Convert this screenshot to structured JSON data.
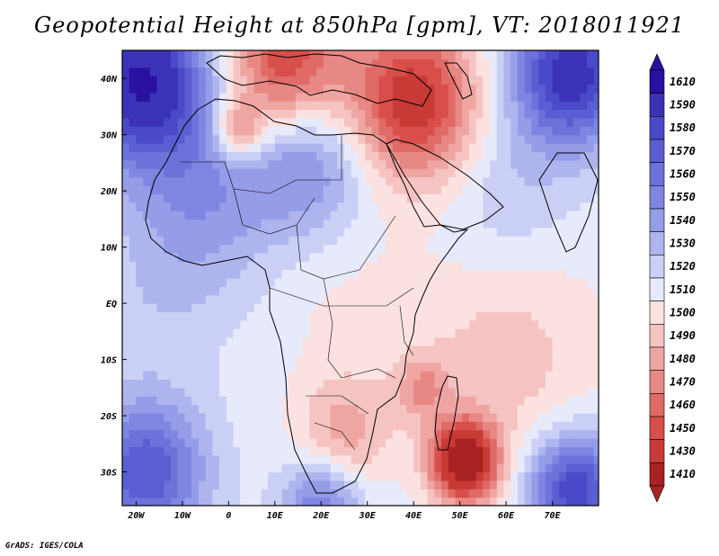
{
  "title": "Geopotential Height at 850hPa [gpm], VT: 2018011921",
  "credit": "GrADS: IGES/COLA",
  "map": {
    "lon_range": [
      -23,
      80
    ],
    "lat_range": [
      -36,
      45
    ],
    "lon_ticks": [
      {
        "value": -20,
        "label": "20W"
      },
      {
        "value": -10,
        "label": "10W"
      },
      {
        "value": 0,
        "label": "0"
      },
      {
        "value": 10,
        "label": "10E"
      },
      {
        "value": 20,
        "label": "20E"
      },
      {
        "value": 30,
        "label": "30E"
      },
      {
        "value": 40,
        "label": "40E"
      },
      {
        "value": 50,
        "label": "50E"
      },
      {
        "value": 60,
        "label": "60E"
      },
      {
        "value": 70,
        "label": "70E"
      }
    ],
    "lat_ticks": [
      {
        "value": 40,
        "label": "40N"
      },
      {
        "value": 30,
        "label": "30N"
      },
      {
        "value": 20,
        "label": "20N"
      },
      {
        "value": 10,
        "label": "10N"
      },
      {
        "value": 0,
        "label": "EQ"
      },
      {
        "value": -10,
        "label": "10S"
      },
      {
        "value": -20,
        "label": "20S"
      },
      {
        "value": -30,
        "label": "30S"
      }
    ]
  },
  "colorbar": {
    "levels": [
      {
        "label": "1610",
        "color": "#2a10a0"
      },
      {
        "label": "1590",
        "color": "#3b32b8"
      },
      {
        "label": "1580",
        "color": "#4a4ac8"
      },
      {
        "label": "1570",
        "color": "#5a5ed2"
      },
      {
        "label": "1560",
        "color": "#6c72da"
      },
      {
        "label": "1550",
        "color": "#7e86e2"
      },
      {
        "label": "1540",
        "color": "#959ce8"
      },
      {
        "label": "1530",
        "color": "#aeb4ee"
      },
      {
        "label": "1520",
        "color": "#cad0f5"
      },
      {
        "label": "1510",
        "color": "#e6eafb"
      },
      {
        "label": "1500",
        "color": "#fbe2e0"
      },
      {
        "label": "1490",
        "color": "#f5c4c2"
      },
      {
        "label": "1480",
        "color": "#efa6a3"
      },
      {
        "label": "1470",
        "color": "#e88884"
      },
      {
        "label": "1460",
        "color": "#e06a66"
      },
      {
        "label": "1450",
        "color": "#d84e4a"
      },
      {
        "label": "1430",
        "color": "#c83a36"
      },
      {
        "label": "1410",
        "color": "#a82222"
      }
    ],
    "top_color": "#2a10a0",
    "bottom_color": "#a82222"
  },
  "field_centers": [
    {
      "lon": -19,
      "lat": 40,
      "value": 1610,
      "r": 10
    },
    {
      "lon": 74,
      "lat": 41,
      "value": 1600,
      "r": 9
    },
    {
      "lon": 2,
      "lat": 31,
      "value": 1470,
      "r": 4
    },
    {
      "lon": 12,
      "lat": 43,
      "value": 1450,
      "r": 9
    },
    {
      "lon": 40,
      "lat": 36,
      "value": 1440,
      "r": 10
    },
    {
      "lon": 51,
      "lat": -28,
      "value": 1410,
      "r": 5
    },
    {
      "lon": 42,
      "lat": -15,
      "value": 1485,
      "r": 4
    },
    {
      "lon": 25,
      "lat": -23,
      "value": 1485,
      "r": 7
    },
    {
      "lon": 18,
      "lat": 25,
      "value": 1550,
      "r": 9
    },
    {
      "lon": -5,
      "lat": 20,
      "value": 1548,
      "r": 12
    },
    {
      "lon": -18,
      "lat": -30,
      "value": 1580,
      "r": 9
    },
    {
      "lon": 75,
      "lat": -33,
      "value": 1590,
      "r": 7
    },
    {
      "lon": 20,
      "lat": -36,
      "value": 1560,
      "r": 6
    },
    {
      "lon": 60,
      "lat": -10,
      "value": 1495,
      "r": 14
    },
    {
      "lon": 25,
      "lat": 0,
      "value": 1508,
      "r": 12
    },
    {
      "lon": 60,
      "lat": 20,
      "value": 1530,
      "r": 10
    },
    {
      "lon": -15,
      "lat": 0,
      "value": 1525,
      "r": 10
    }
  ]
}
